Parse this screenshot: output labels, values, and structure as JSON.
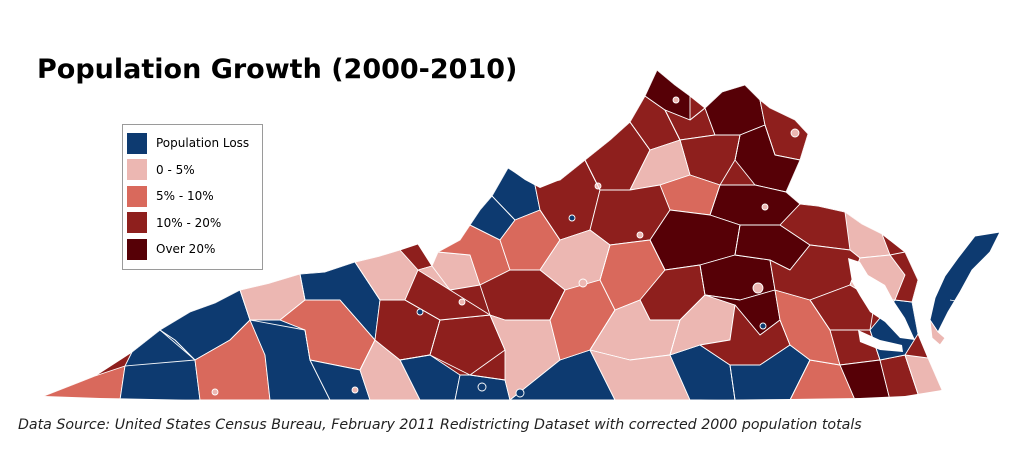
{
  "title": "Population Growth (2000-2010)",
  "legend": {
    "items": [
      {
        "label": "Population Loss",
        "color": "#0d3a70",
        "class": "loss"
      },
      {
        "label": "0 - 5%",
        "color": "#ecb7b2",
        "class": "g0_5"
      },
      {
        "label": "5% - 10%",
        "color": "#d9695c",
        "class": "g5_10"
      },
      {
        "label": "10% - 20%",
        "color": "#8e1f1d",
        "class": "g10_20"
      },
      {
        "label": "Over 20%",
        "color": "#560006",
        "class": "g20"
      }
    ]
  },
  "map": {
    "region": "Virginia",
    "unit": "counties and independent cities",
    "border_color": "#ffffff"
  },
  "source_note": "Data Source:  United States Census Bureau, February 2011 Redistricting Dataset with corrected 2000 population totals"
}
